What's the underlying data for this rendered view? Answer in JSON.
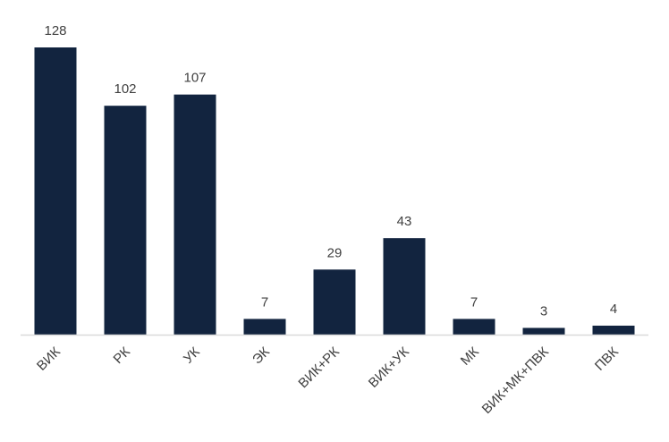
{
  "chart_data": {
    "type": "bar",
    "title": "",
    "xlabel": "",
    "ylabel": "",
    "categories": [
      "ВИК",
      "РК",
      "УК",
      "ЭК",
      "ВИК+РК",
      "ВИК+УК",
      "МК",
      "ВИК+МК+ПВК",
      "ПВК"
    ],
    "values": [
      128,
      102,
      107,
      7,
      29,
      43,
      7,
      3,
      4
    ],
    "ylim": [
      0,
      128
    ],
    "grid": false,
    "legend": "none",
    "bar_color": "#12243F",
    "data_labels": true
  }
}
